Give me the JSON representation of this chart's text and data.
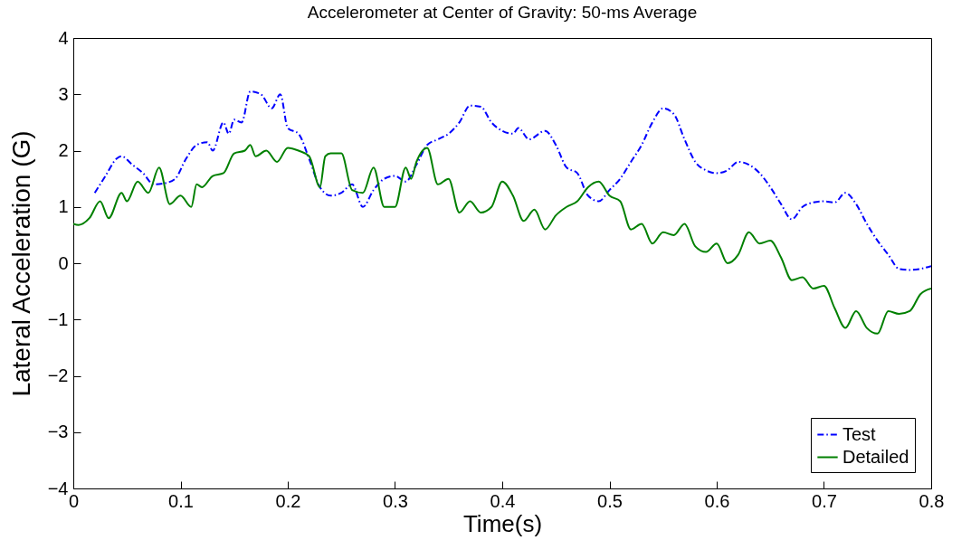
{
  "chart_data": {
    "type": "line",
    "title": "Accelerometer at Center of Gravity: 50-ms Average",
    "xlabel": "Time(s)",
    "ylabel": "Lateral Acceleration (G)",
    "xlim": [
      0,
      0.8
    ],
    "xticks": [
      0,
      0.1,
      0.2,
      0.3,
      0.4,
      0.5,
      0.6,
      0.7,
      0.8
    ],
    "ylim": [
      -4,
      4
    ],
    "yticks": [
      -4,
      -3,
      -2,
      -1,
      0,
      1,
      2,
      3,
      4
    ],
    "grid": false,
    "legend": "bottom right",
    "series": [
      {
        "name": "Test",
        "color": "#0000ff",
        "line_style": "dashed",
        "x": [
          0.02,
          0.03,
          0.04,
          0.045,
          0.055,
          0.065,
          0.075,
          0.085,
          0.095,
          0.105,
          0.115,
          0.125,
          0.13,
          0.14,
          0.145,
          0.15,
          0.157,
          0.165,
          0.175,
          0.185,
          0.193,
          0.2,
          0.21,
          0.22,
          0.23,
          0.24,
          0.25,
          0.26,
          0.27,
          0.28,
          0.29,
          0.3,
          0.31,
          0.32,
          0.33,
          0.34,
          0.35,
          0.36,
          0.37,
          0.38,
          0.39,
          0.4,
          0.41,
          0.415,
          0.425,
          0.44,
          0.45,
          0.46,
          0.47,
          0.48,
          0.49,
          0.5,
          0.51,
          0.52,
          0.53,
          0.54,
          0.55,
          0.56,
          0.57,
          0.58,
          0.59,
          0.6,
          0.61,
          0.62,
          0.63,
          0.64,
          0.65,
          0.66,
          0.67,
          0.68,
          0.69,
          0.7,
          0.71,
          0.72,
          0.73,
          0.74,
          0.75,
          0.76,
          0.77,
          0.78,
          0.79,
          0.8
        ],
        "values": [
          1.25,
          1.55,
          1.85,
          1.9,
          1.75,
          1.6,
          1.4,
          1.42,
          1.5,
          1.85,
          2.1,
          2.15,
          2.0,
          2.5,
          2.3,
          2.55,
          2.5,
          3.05,
          3.0,
          2.75,
          3.0,
          2.4,
          2.3,
          1.85,
          1.35,
          1.2,
          1.25,
          1.4,
          1.0,
          1.3,
          1.5,
          1.55,
          1.45,
          1.75,
          2.1,
          2.2,
          2.3,
          2.5,
          2.8,
          2.78,
          2.5,
          2.35,
          2.3,
          2.4,
          2.2,
          2.35,
          2.1,
          1.7,
          1.6,
          1.2,
          1.1,
          1.3,
          1.5,
          1.8,
          2.1,
          2.5,
          2.75,
          2.65,
          2.2,
          1.8,
          1.65,
          1.6,
          1.65,
          1.8,
          1.75,
          1.6,
          1.35,
          1.05,
          0.78,
          1.0,
          1.08,
          1.1,
          1.08,
          1.25,
          1.05,
          0.7,
          0.4,
          0.15,
          -0.1,
          -0.12,
          -0.1,
          -0.05
        ]
      },
      {
        "name": "Detailed",
        "color": "#008000",
        "line_style": "solid",
        "x": [
          0,
          0.005,
          0.015,
          0.025,
          0.033,
          0.045,
          0.05,
          0.06,
          0.07,
          0.08,
          0.09,
          0.1,
          0.11,
          0.115,
          0.12,
          0.13,
          0.14,
          0.15,
          0.16,
          0.165,
          0.17,
          0.18,
          0.19,
          0.2,
          0.21,
          0.22,
          0.23,
          0.235,
          0.24,
          0.25,
          0.26,
          0.27,
          0.28,
          0.29,
          0.3,
          0.31,
          0.315,
          0.32,
          0.33,
          0.34,
          0.35,
          0.36,
          0.37,
          0.38,
          0.39,
          0.4,
          0.41,
          0.42,
          0.43,
          0.44,
          0.45,
          0.46,
          0.47,
          0.48,
          0.49,
          0.5,
          0.51,
          0.52,
          0.53,
          0.54,
          0.55,
          0.56,
          0.57,
          0.58,
          0.59,
          0.6,
          0.61,
          0.62,
          0.63,
          0.64,
          0.65,
          0.66,
          0.67,
          0.68,
          0.69,
          0.7,
          0.71,
          0.72,
          0.73,
          0.74,
          0.75,
          0.76,
          0.77,
          0.78,
          0.79,
          0.8
        ],
        "values": [
          0.7,
          0.68,
          0.8,
          1.1,
          0.8,
          1.25,
          1.1,
          1.45,
          1.25,
          1.7,
          1.05,
          1.2,
          1.0,
          1.4,
          1.35,
          1.55,
          1.6,
          1.95,
          2.0,
          2.1,
          1.9,
          2.0,
          1.8,
          2.05,
          2.0,
          1.9,
          1.35,
          1.9,
          1.95,
          1.95,
          1.3,
          1.25,
          1.7,
          1.0,
          1.0,
          1.7,
          1.5,
          1.8,
          2.05,
          1.4,
          1.5,
          0.9,
          1.1,
          0.9,
          1.0,
          1.45,
          1.2,
          0.75,
          0.95,
          0.6,
          0.85,
          1.0,
          1.1,
          1.35,
          1.45,
          1.2,
          1.1,
          0.6,
          0.7,
          0.35,
          0.55,
          0.5,
          0.7,
          0.3,
          0.2,
          0.35,
          0.0,
          0.15,
          0.55,
          0.35,
          0.4,
          0.1,
          -0.3,
          -0.25,
          -0.45,
          -0.4,
          -0.8,
          -1.15,
          -0.85,
          -1.15,
          -1.25,
          -0.85,
          -0.9,
          -0.85,
          -0.55,
          -0.45
        ]
      }
    ]
  }
}
